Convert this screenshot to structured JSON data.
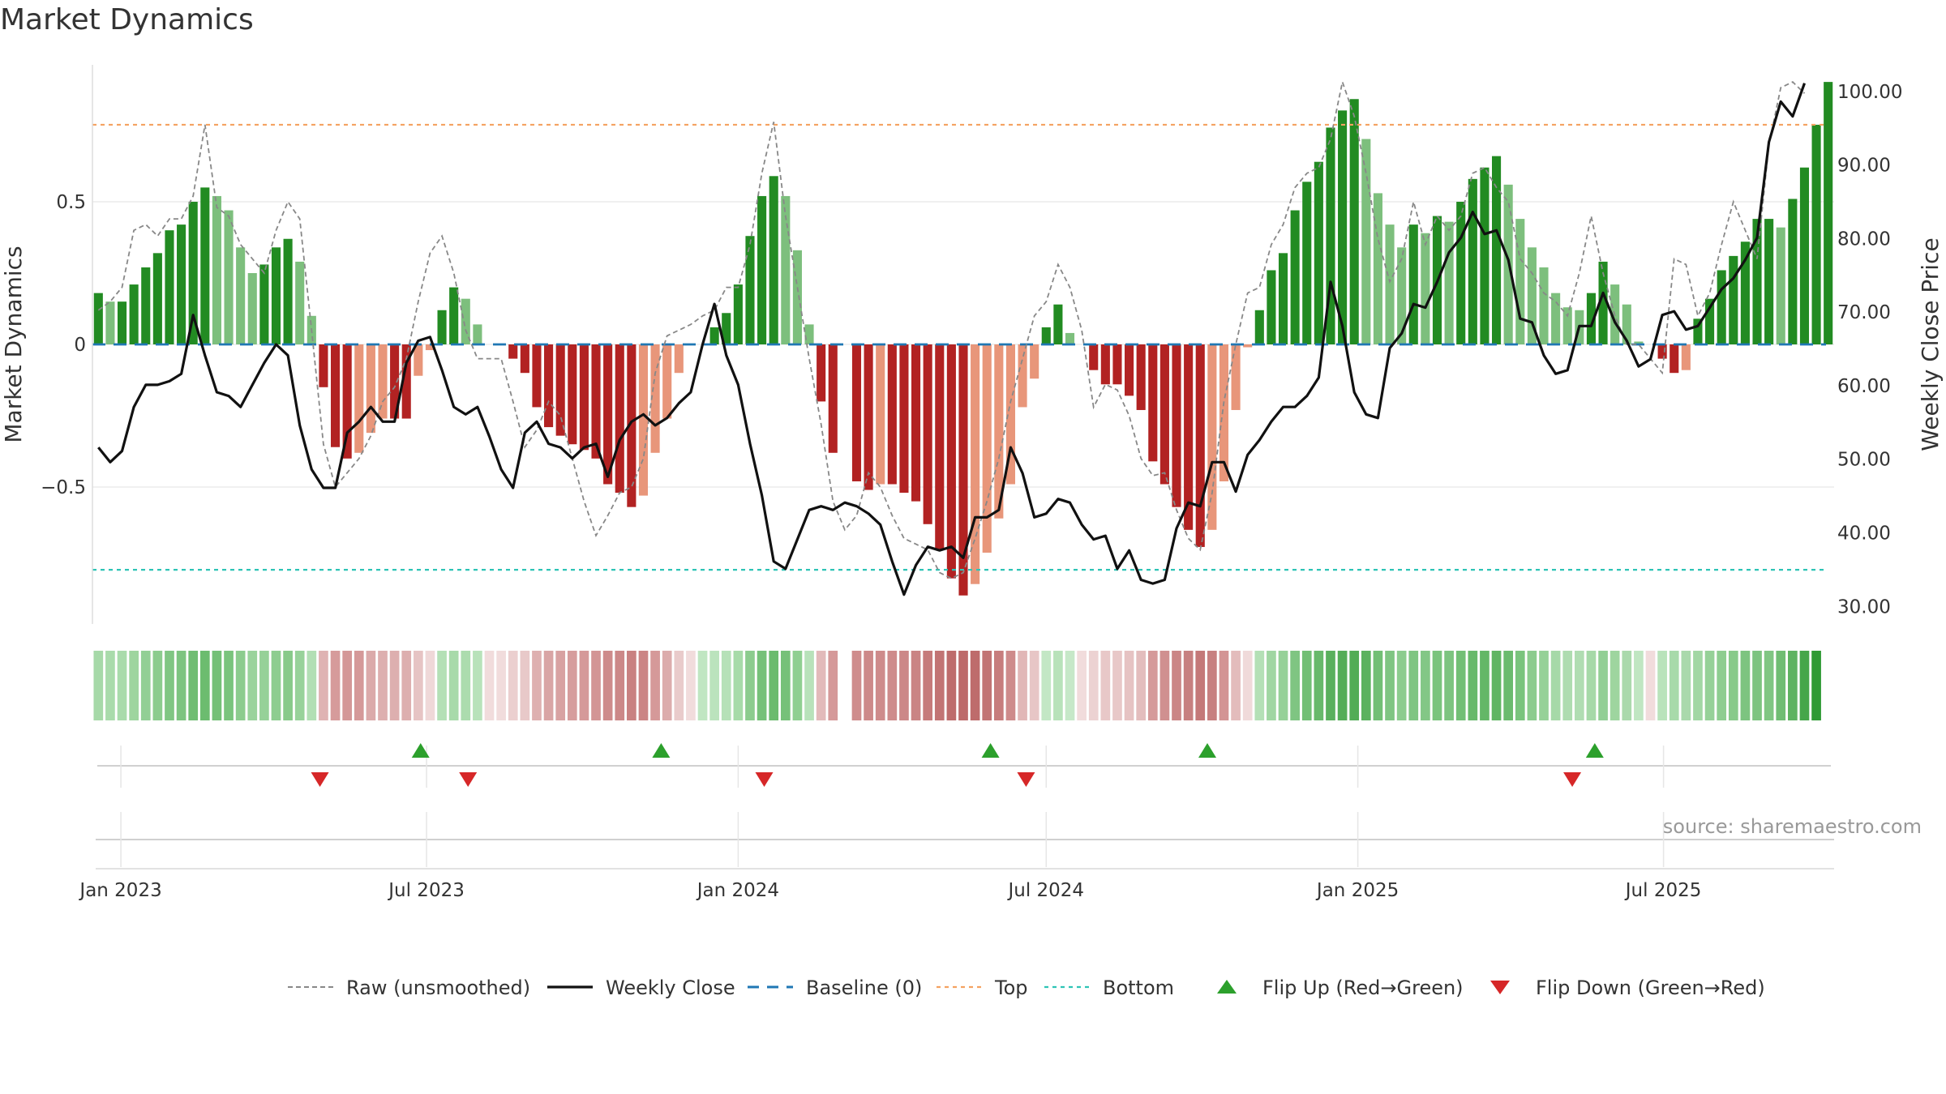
{
  "page": {
    "title": "Market Dynamics",
    "source": "source: sharemaestro.com"
  },
  "chart_data": {
    "type": "bar",
    "title": "Market Dynamics",
    "ylabel": "Market Dynamics",
    "y2label": "Weekly Close Price",
    "ylim": [
      -0.98,
      0.98
    ],
    "y2lim": [
      27.5,
      103.5
    ],
    "y_ticks": [
      {
        "v": 0.5,
        "label": "0.5"
      },
      {
        "v": 0,
        "label": "0"
      },
      {
        "v": -0.5,
        "label": "−0.5"
      }
    ],
    "y2_ticks": [
      "30.00",
      "40.00",
      "50.00",
      "60.00",
      "70.00",
      "80.00",
      "90.00",
      "100.00"
    ],
    "x_ticks": [
      {
        "i": 1.9,
        "label": "Jan 2023"
      },
      {
        "i": 27.7,
        "label": "Jul 2023"
      },
      {
        "i": 54.0,
        "label": "Jan 2024"
      },
      {
        "i": 80.0,
        "label": "Jul 2024"
      },
      {
        "i": 106.3,
        "label": "Jan 2025"
      },
      {
        "i": 132.1,
        "label": "Jul 2025"
      }
    ],
    "top_line": 0.77,
    "bottom_line": -0.79,
    "baseline": 0,
    "colors": {
      "strong_green": "#228b22",
      "light_green": "#7dbf7d",
      "strong_red": "#b22222",
      "light_red": "#e8967a",
      "top": "#f4a261",
      "bottom": "#2ec4b6",
      "baseline": "#1f77b4",
      "close": "#111111",
      "raw": "#888888",
      "flip_up": "#2ca02c",
      "flip_down": "#d62728"
    },
    "dynamics": [
      0.18,
      0.15,
      0.15,
      0.21,
      0.27,
      0.32,
      0.4,
      0.42,
      0.5,
      0.55,
      0.52,
      0.47,
      0.34,
      0.25,
      0.28,
      0.34,
      0.37,
      0.29,
      0.1,
      -0.15,
      -0.36,
      -0.4,
      -0.38,
      -0.31,
      -0.26,
      -0.26,
      -0.26,
      -0.11,
      -0.02,
      0.12,
      0.2,
      0.16,
      0.07,
      0.0,
      0.0,
      -0.05,
      -0.1,
      -0.22,
      -0.29,
      -0.32,
      -0.35,
      -0.37,
      -0.4,
      -0.49,
      -0.52,
      -0.57,
      -0.53,
      -0.38,
      -0.26,
      -0.1,
      0.0,
      0.0,
      0.06,
      0.11,
      0.21,
      0.38,
      0.52,
      0.59,
      0.52,
      0.33,
      0.07,
      -0.2,
      -0.38,
      0.0,
      -0.48,
      -0.51,
      -0.49,
      -0.49,
      -0.52,
      -0.55,
      -0.63,
      -0.72,
      -0.82,
      -0.88,
      -0.84,
      -0.73,
      -0.61,
      -0.49,
      -0.22,
      -0.12,
      0.06,
      0.14,
      0.04,
      0.0,
      -0.09,
      -0.14,
      -0.14,
      -0.18,
      -0.23,
      -0.41,
      -0.49,
      -0.57,
      -0.65,
      -0.71,
      -0.65,
      -0.48,
      -0.23,
      -0.01,
      0.12,
      0.26,
      0.32,
      0.47,
      0.57,
      0.64,
      0.76,
      0.82,
      0.86,
      0.72,
      0.53,
      0.42,
      0.34,
      0.42,
      0.39,
      0.45,
      0.43,
      0.5,
      0.58,
      0.62,
      0.66,
      0.56,
      0.44,
      0.34,
      0.27,
      0.18,
      0.13,
      0.12,
      0.18,
      0.29,
      0.21,
      0.14,
      0.01,
      0.0,
      -0.05,
      -0.1,
      -0.09,
      0.09,
      0.16,
      0.26,
      0.31,
      0.36,
      0.44,
      0.44,
      0.41,
      0.51,
      0.62,
      0.77,
      0.92
    ],
    "raw": [
      0.12,
      0.15,
      0.2,
      0.4,
      0.42,
      0.38,
      0.44,
      0.44,
      0.52,
      0.77,
      0.48,
      0.45,
      0.35,
      0.3,
      0.25,
      0.4,
      0.5,
      0.44,
      0.05,
      -0.35,
      -0.5,
      -0.45,
      -0.4,
      -0.32,
      -0.2,
      -0.15,
      -0.05,
      0.15,
      0.32,
      0.38,
      0.25,
      0.05,
      -0.05,
      -0.05,
      -0.05,
      -0.2,
      -0.36,
      -0.3,
      -0.2,
      -0.25,
      -0.4,
      -0.55,
      -0.67,
      -0.6,
      -0.52,
      -0.5,
      -0.4,
      -0.1,
      0.03,
      0.05,
      0.07,
      0.1,
      0.12,
      0.2,
      0.2,
      0.35,
      0.6,
      0.78,
      0.45,
      0.2,
      -0.05,
      -0.28,
      -0.55,
      -0.65,
      -0.6,
      -0.45,
      -0.5,
      -0.6,
      -0.68,
      -0.7,
      -0.72,
      -0.8,
      -0.82,
      -0.8,
      -0.68,
      -0.55,
      -0.4,
      -0.2,
      -0.05,
      0.1,
      0.15,
      0.28,
      0.2,
      0.05,
      -0.22,
      -0.14,
      -0.16,
      -0.25,
      -0.4,
      -0.46,
      -0.45,
      -0.58,
      -0.68,
      -0.72,
      -0.52,
      -0.2,
      0.0,
      0.18,
      0.2,
      0.35,
      0.42,
      0.55,
      0.6,
      0.62,
      0.72,
      0.92,
      0.8,
      0.6,
      0.37,
      0.22,
      0.3,
      0.5,
      0.35,
      0.45,
      0.4,
      0.45,
      0.6,
      0.62,
      0.55,
      0.5,
      0.3,
      0.25,
      0.18,
      0.15,
      0.1,
      0.25,
      0.45,
      0.25,
      0.1,
      0.0,
      0.0,
      -0.05,
      -0.1,
      0.3,
      0.28,
      0.1,
      0.18,
      0.35,
      0.5,
      0.4,
      0.3,
      0.7,
      0.9,
      0.92,
      0.88
    ],
    "close": [
      51.5,
      49.5,
      51.0,
      57.0,
      60.0,
      60.0,
      60.5,
      61.5,
      69.5,
      64.0,
      59.0,
      58.5,
      57.0,
      60.0,
      63.0,
      65.5,
      64.0,
      54.5,
      48.5,
      46.0,
      46.0,
      53.5,
      55.0,
      57.0,
      55.0,
      55.0,
      63.0,
      66.0,
      66.5,
      62.0,
      57.0,
      56.0,
      57.0,
      53.0,
      48.5,
      46.0,
      53.5,
      55.0,
      52.0,
      51.5,
      50.0,
      51.5,
      52.0,
      47.5,
      52.5,
      55.0,
      56.0,
      54.5,
      55.5,
      57.5,
      59.0,
      65.5,
      71.0,
      64.0,
      60.0,
      52.0,
      45.0,
      36.0,
      35.0,
      39.0,
      43.0,
      43.5,
      43.0,
      44.0,
      43.5,
      42.5,
      41.0,
      36.0,
      31.5,
      35.5,
      38.0,
      37.5,
      38.0,
      36.5,
      42.0,
      42.0,
      43.0,
      51.5,
      48.0,
      42.0,
      42.5,
      44.5,
      44.0,
      41.0,
      39.0,
      39.5,
      35.0,
      37.5,
      33.5,
      33.0,
      33.5,
      40.5,
      44.0,
      43.5,
      49.5,
      49.5,
      45.5,
      50.5,
      52.5,
      55.0,
      57.0,
      57.0,
      58.5,
      61.0,
      74.0,
      68.0,
      59.0,
      56.0,
      55.5,
      65.0,
      67.0,
      71.0,
      70.5,
      74.0,
      78.0,
      80.0,
      83.5,
      80.5,
      81.0,
      77.0,
      69.0,
      68.5,
      64.0,
      61.5,
      62.0,
      68.0,
      68.0,
      72.5,
      68.5,
      66.0,
      62.5,
      63.5,
      69.5,
      70.0,
      67.5,
      68.0,
      70.5,
      73.0,
      74.5,
      77.0,
      80.0,
      93.0,
      98.5,
      96.5,
      101.0
    ],
    "tiles": [
      {
        "i": 0,
        "c": "#a6d9a8"
      },
      {
        "i": 1,
        "c": "#a9dbab"
      },
      {
        "i": 2,
        "c": "#a9dbab"
      },
      {
        "i": 3,
        "c": "#9ed59f"
      },
      {
        "i": 4,
        "c": "#92cf95"
      },
      {
        "i": 5,
        "c": "#8ccc8e"
      },
      {
        "i": 6,
        "c": "#80c683"
      },
      {
        "i": 7,
        "c": "#7dc480"
      },
      {
        "i": 8,
        "c": "#70bd73"
      },
      {
        "i": 9,
        "c": "#6cbc6f"
      },
      {
        "i": 10,
        "c": "#74c077"
      },
      {
        "i": 11,
        "c": "#7ac47d"
      },
      {
        "i": 12,
        "c": "#8ccc8e"
      },
      {
        "i": 13,
        "c": "#9ad39c"
      },
      {
        "i": 14,
        "c": "#96d198"
      },
      {
        "i": 15,
        "c": "#8ecd90"
      },
      {
        "i": 16,
        "c": "#88ca8a"
      },
      {
        "i": 17,
        "c": "#98d29a"
      },
      {
        "i": 18,
        "c": "#b2dfb4"
      },
      {
        "i": 19,
        "c": "#dfb3b3"
      },
      {
        "i": 20,
        "c": "#d69b9b"
      },
      {
        "i": 21,
        "c": "#d49797"
      },
      {
        "i": 22,
        "c": "#d59999"
      },
      {
        "i": 23,
        "c": "#dbaaaa"
      },
      {
        "i": 24,
        "c": "#ddafaf"
      },
      {
        "i": 25,
        "c": "#ddafaf"
      },
      {
        "i": 26,
        "c": "#ddafaf"
      },
      {
        "i": 27,
        "c": "#e6c4c4"
      },
      {
        "i": 28,
        "c": "#efd8d8"
      },
      {
        "i": 29,
        "c": "#b4e0b6"
      },
      {
        "i": 30,
        "c": "#a8daaa"
      },
      {
        "i": 31,
        "c": "#acdcae"
      },
      {
        "i": 32,
        "c": "#b8e2ba"
      },
      {
        "i": 33,
        "c": "#f1dcdc"
      },
      {
        "i": 34,
        "c": "#f1dcdc"
      },
      {
        "i": 35,
        "c": "#ebcfcf"
      },
      {
        "i": 36,
        "c": "#e8c9c9"
      },
      {
        "i": 37,
        "c": "#deb0b0"
      },
      {
        "i": 38,
        "c": "#d9a5a5"
      },
      {
        "i": 39,
        "c": "#d8a2a2"
      },
      {
        "i": 40,
        "c": "#d69d9d"
      },
      {
        "i": 41,
        "c": "#d59999"
      },
      {
        "i": 42,
        "c": "#d39595"
      },
      {
        "i": 43,
        "c": "#ce8b8b"
      },
      {
        "i": 44,
        "c": "#cc8888"
      },
      {
        "i": 45,
        "c": "#c98181"
      },
      {
        "i": 46,
        "c": "#cb8585"
      },
      {
        "i": 47,
        "c": "#d59999"
      },
      {
        "i": 48,
        "c": "#dcacac"
      },
      {
        "i": 49,
        "c": "#e9cbcb"
      },
      {
        "i": 50,
        "c": "#f1dcdc"
      },
      {
        "i": 51,
        "c": "#c0e6c2"
      },
      {
        "i": 52,
        "c": "#bbe3bd"
      },
      {
        "i": 53,
        "c": "#b6e1b8"
      },
      {
        "i": 54,
        "c": "#a7dba9"
      },
      {
        "i": 55,
        "c": "#8ccc8e"
      },
      {
        "i": 56,
        "c": "#76c179"
      },
      {
        "i": 57,
        "c": "#6bbb6e"
      },
      {
        "i": 58,
        "c": "#76c179"
      },
      {
        "i": 59,
        "c": "#8fcf91"
      },
      {
        "i": 60,
        "c": "#b8e2ba"
      },
      {
        "i": 61,
        "c": "#e2baba"
      },
      {
        "i": 62,
        "c": "#d59999"
      },
      {
        "i": 64,
        "c": "#cf8c8c"
      },
      {
        "i": 65,
        "c": "#cd8989"
      },
      {
        "i": 66,
        "c": "#ce8b8b"
      },
      {
        "i": 67,
        "c": "#ce8b8b"
      },
      {
        "i": 68,
        "c": "#cc8888"
      },
      {
        "i": 69,
        "c": "#ca8484"
      },
      {
        "i": 70,
        "c": "#c67b7b"
      },
      {
        "i": 71,
        "c": "#c27474"
      },
      {
        "i": 72,
        "c": "#be6c6c"
      },
      {
        "i": 73,
        "c": "#bd6a6a"
      },
      {
        "i": 74,
        "c": "#be6c6c"
      },
      {
        "i": 75,
        "c": "#c27474"
      },
      {
        "i": 76,
        "c": "#c77d7d"
      },
      {
        "i": 77,
        "c": "#ce8b8b"
      },
      {
        "i": 78,
        "c": "#e1b7b7"
      },
      {
        "i": 79,
        "c": "#e7c6c6"
      },
      {
        "i": 80,
        "c": "#c3e7c5"
      },
      {
        "i": 81,
        "c": "#b8e2ba"
      },
      {
        "i": 82,
        "c": "#c6e8c8"
      },
      {
        "i": 83,
        "c": "#f1dcdc"
      },
      {
        "i": 84,
        "c": "#ecd2d2"
      },
      {
        "i": 85,
        "c": "#e8c8c8"
      },
      {
        "i": 86,
        "c": "#e8c8c8"
      },
      {
        "i": 87,
        "c": "#e6c3c3"
      },
      {
        "i": 88,
        "c": "#e3bdbd"
      },
      {
        "i": 89,
        "c": "#d59a9a"
      },
      {
        "i": 90,
        "c": "#d09090"
      },
      {
        "i": 91,
        "c": "#cb8686"
      },
      {
        "i": 92,
        "c": "#c78080"
      },
      {
        "i": 93,
        "c": "#c47979"
      },
      {
        "i": 94,
        "c": "#c78080"
      },
      {
        "i": 95,
        "c": "#d39494"
      },
      {
        "i": 96,
        "c": "#e3bcbc"
      },
      {
        "i": 97,
        "c": "#f0dada"
      },
      {
        "i": 98,
        "c": "#b4e0b6"
      },
      {
        "i": 99,
        "c": "#a0d6a2"
      },
      {
        "i": 100,
        "c": "#96d198"
      },
      {
        "i": 101,
        "c": "#7fc582"
      },
      {
        "i": 102,
        "c": "#72bf75"
      },
      {
        "i": 103,
        "c": "#68b96b"
      },
      {
        "i": 104,
        "c": "#5ab05d"
      },
      {
        "i": 105,
        "c": "#55ad58"
      },
      {
        "i": 106,
        "c": "#52ac55"
      },
      {
        "i": 107,
        "c": "#5cb25f"
      },
      {
        "i": 108,
        "c": "#72bf75"
      },
      {
        "i": 109,
        "c": "#7fc582"
      },
      {
        "i": 110,
        "c": "#8ccc8e"
      },
      {
        "i": 111,
        "c": "#7fc582"
      },
      {
        "i": 112,
        "c": "#83c786"
      },
      {
        "i": 113,
        "c": "#7ac47d"
      },
      {
        "i": 114,
        "c": "#7dc480"
      },
      {
        "i": 115,
        "c": "#72bf75"
      },
      {
        "i": 116,
        "c": "#68b96b"
      },
      {
        "i": 117,
        "c": "#64b767"
      },
      {
        "i": 118,
        "c": "#60b563"
      },
      {
        "i": 119,
        "c": "#6bbb6e"
      },
      {
        "i": 120,
        "c": "#7ac47d"
      },
      {
        "i": 121,
        "c": "#8ccc8e"
      },
      {
        "i": 122,
        "c": "#96d198"
      },
      {
        "i": 123,
        "c": "#a6d9a8"
      },
      {
        "i": 124,
        "c": "#aedcb0"
      },
      {
        "i": 125,
        "c": "#b0ddb2"
      },
      {
        "i": 126,
        "c": "#a6d9a8"
      },
      {
        "i": 127,
        "c": "#92cf95"
      },
      {
        "i": 128,
        "c": "#9ed59f"
      },
      {
        "i": 129,
        "c": "#aad9ac"
      },
      {
        "i": 130,
        "c": "#c0e6c2"
      },
      {
        "i": 131,
        "c": "#f1dcdc"
      },
      {
        "i": 132,
        "c": "#b9e3bb"
      },
      {
        "i": 133,
        "c": "#a8daaa"
      },
      {
        "i": 134,
        "c": "#aad9ac"
      },
      {
        "i": 135,
        "c": "#a2d7a4"
      },
      {
        "i": 136,
        "c": "#96d198"
      },
      {
        "i": 137,
        "c": "#8ecd90"
      },
      {
        "i": 138,
        "c": "#88ca8a"
      },
      {
        "i": 139,
        "c": "#7dc480"
      },
      {
        "i": 140,
        "c": "#7dc480"
      },
      {
        "i": 141,
        "c": "#80c683"
      },
      {
        "i": 142,
        "c": "#70bd73"
      },
      {
        "i": 143,
        "c": "#5eb361"
      },
      {
        "i": 144,
        "c": "#46a64a"
      },
      {
        "i": 145,
        "c": "#2f9a34"
      }
    ],
    "flips_up": [
      27.2,
      47.5,
      75.3,
      93.6,
      126.3
    ],
    "flips_down": [
      18.7,
      31.2,
      56.2,
      78.3,
      124.4
    ],
    "legend": [
      {
        "key": "raw",
        "label": "Raw (unsmoothed)"
      },
      {
        "key": "close",
        "label": "Weekly Close"
      },
      {
        "key": "baseline",
        "label": "Baseline (0)"
      },
      {
        "key": "top",
        "label": "Top"
      },
      {
        "key": "bottom",
        "label": "Bottom"
      },
      {
        "key": "flip_up",
        "label": "Flip Up (Red→Green)"
      },
      {
        "key": "flip_down",
        "label": "Flip Down (Green→Red)"
      }
    ]
  }
}
